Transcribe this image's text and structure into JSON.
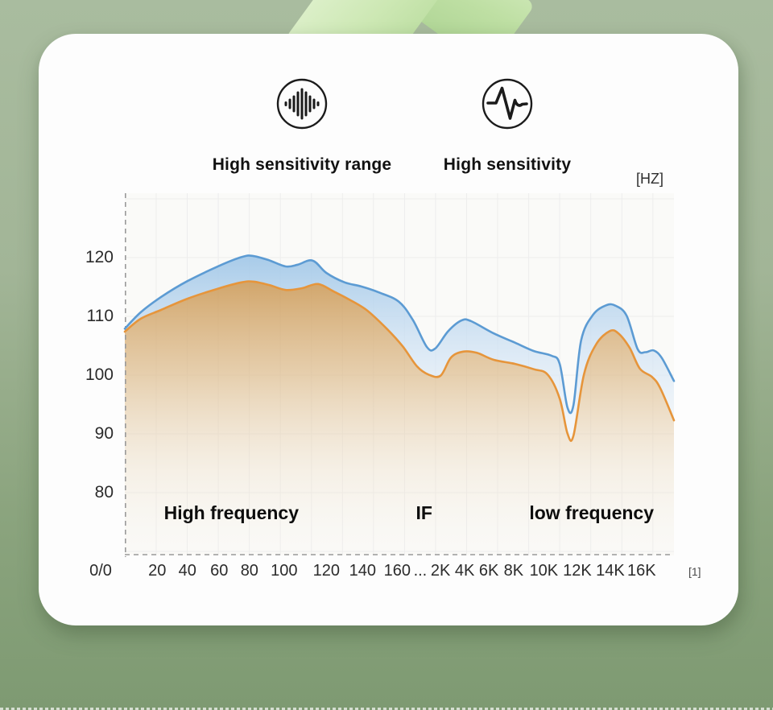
{
  "decor": {
    "background_top": "#a9bc9f",
    "background_bottom": "#7e9a72",
    "ribbon_light": "#e3f3d3",
    "ribbon_dark": "#aed494",
    "card_color": "#fdfdfd"
  },
  "features": [
    {
      "icon": "soundwave-icon",
      "label": "High sensitivity range"
    },
    {
      "icon": "pulse-icon",
      "label": "High sensitivity"
    }
  ],
  "chart_data": {
    "type": "area",
    "title": "",
    "xlabel": "",
    "ylabel": "",
    "unit_label": "[HZ]",
    "origin_label": "0/0",
    "footnote_label": "[1]",
    "grid": true,
    "ylim": [
      70,
      130
    ],
    "y_ticks": [
      120,
      110,
      100,
      90,
      80
    ],
    "x_ticks": [
      {
        "label": "20",
        "pct": 5.9
      },
      {
        "label": "40",
        "pct": 11.4
      },
      {
        "label": "60",
        "pct": 17.2
      },
      {
        "label": "80",
        "pct": 22.7
      },
      {
        "label": "100",
        "pct": 29.0
      },
      {
        "label": "120",
        "pct": 36.7
      },
      {
        "label": "140",
        "pct": 43.3
      },
      {
        "label": "160",
        "pct": 49.6
      },
      {
        "label": "...",
        "pct": 53.8
      },
      {
        "label": "2K",
        "pct": 57.5
      },
      {
        "label": "4K",
        "pct": 61.9
      },
      {
        "label": "6K",
        "pct": 66.3
      },
      {
        "label": "8K",
        "pct": 70.8
      },
      {
        "label": "10K",
        "pct": 76.3
      },
      {
        "label": "12K",
        "pct": 82.4
      },
      {
        "label": "14K",
        "pct": 88.4
      },
      {
        "label": "16K",
        "pct": 94.1
      }
    ],
    "zone_labels": [
      {
        "label": "High frequency",
        "pct": 19.4
      },
      {
        "label": "IF",
        "pct": 54.5
      },
      {
        "label": "low frequency",
        "pct": 85.0
      }
    ],
    "colors": {
      "upper_stroke": "#5c9bd3",
      "upper_fill_top": "#9fc6e7",
      "upper_fill_bottom": "#ecf3fb",
      "lower_stroke": "#e6953b",
      "lower_fill_top": "#cc9a58",
      "lower_fill_bottom": "#f8f3ea",
      "axis_dash": "#9a9a9a",
      "grid_line": "#ededed"
    },
    "series": [
      {
        "name": "High sensitivity range (upper curve, dB)",
        "points": [
          [
            0.0,
            107.9
          ],
          [
            0.029,
            110.7
          ],
          [
            0.066,
            113.3
          ],
          [
            0.114,
            116.0
          ],
          [
            0.172,
            118.6
          ],
          [
            0.213,
            120.1
          ],
          [
            0.232,
            120.3
          ],
          [
            0.261,
            119.6
          ],
          [
            0.293,
            118.5
          ],
          [
            0.315,
            118.8
          ],
          [
            0.342,
            119.5
          ],
          [
            0.367,
            117.4
          ],
          [
            0.4,
            115.8
          ],
          [
            0.43,
            115.1
          ],
          [
            0.462,
            114.1
          ],
          [
            0.499,
            112.5
          ],
          [
            0.525,
            109.3
          ],
          [
            0.55,
            104.8
          ],
          [
            0.565,
            104.5
          ],
          [
            0.589,
            107.5
          ],
          [
            0.613,
            109.3
          ],
          [
            0.63,
            109.2
          ],
          [
            0.672,
            107.1
          ],
          [
            0.711,
            105.5
          ],
          [
            0.745,
            104.1
          ],
          [
            0.777,
            103.3
          ],
          [
            0.792,
            101.9
          ],
          [
            0.806,
            94.5
          ],
          [
            0.817,
            94.9
          ],
          [
            0.831,
            105.9
          ],
          [
            0.853,
            110.3
          ],
          [
            0.877,
            111.9
          ],
          [
            0.894,
            111.8
          ],
          [
            0.914,
            110.1
          ],
          [
            0.934,
            104.4
          ],
          [
            0.948,
            103.9
          ],
          [
            0.963,
            104.2
          ],
          [
            0.978,
            102.9
          ],
          [
            1.0,
            99.0
          ]
        ]
      },
      {
        "name": "High sensitivity (lower curve, dB)",
        "points": [
          [
            0.0,
            107.4
          ],
          [
            0.029,
            109.6
          ],
          [
            0.066,
            111.1
          ],
          [
            0.114,
            113.0
          ],
          [
            0.169,
            114.7
          ],
          [
            0.213,
            115.8
          ],
          [
            0.235,
            115.9
          ],
          [
            0.264,
            115.3
          ],
          [
            0.293,
            114.5
          ],
          [
            0.323,
            114.8
          ],
          [
            0.352,
            115.5
          ],
          [
            0.381,
            114.2
          ],
          [
            0.406,
            113.0
          ],
          [
            0.44,
            111.1
          ],
          [
            0.477,
            107.9
          ],
          [
            0.506,
            104.9
          ],
          [
            0.532,
            101.5
          ],
          [
            0.553,
            100.1
          ],
          [
            0.575,
            99.9
          ],
          [
            0.594,
            103.0
          ],
          [
            0.616,
            104.0
          ],
          [
            0.641,
            103.8
          ],
          [
            0.672,
            102.6
          ],
          [
            0.711,
            101.9
          ],
          [
            0.745,
            101.0
          ],
          [
            0.77,
            100.1
          ],
          [
            0.792,
            96.0
          ],
          [
            0.806,
            90.1
          ],
          [
            0.817,
            89.7
          ],
          [
            0.836,
            100.1
          ],
          [
            0.858,
            105.2
          ],
          [
            0.883,
            107.5
          ],
          [
            0.899,
            107.1
          ],
          [
            0.919,
            104.7
          ],
          [
            0.938,
            101.1
          ],
          [
            0.96,
            99.7
          ],
          [
            0.975,
            97.8
          ],
          [
            1.0,
            92.3
          ]
        ]
      }
    ]
  }
}
